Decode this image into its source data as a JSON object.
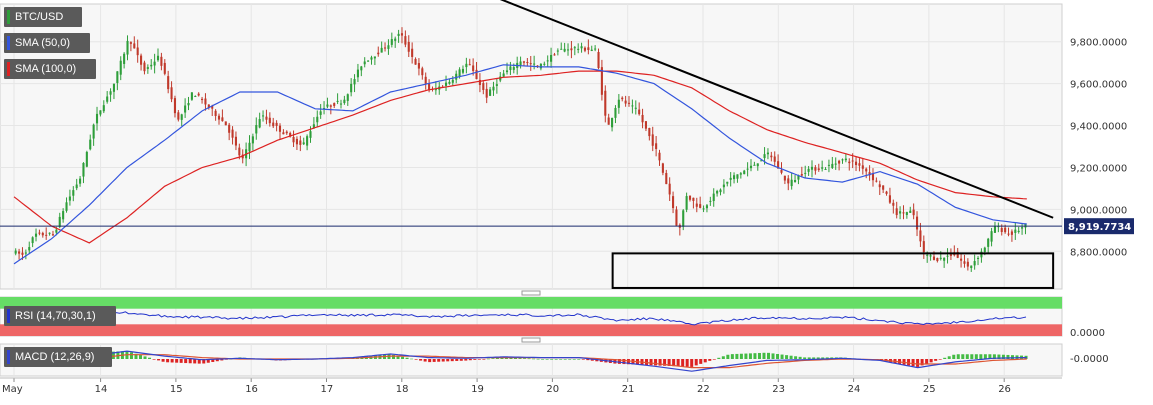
{
  "legend": {
    "symbol": "BTC/USD",
    "sma50": "SMA (50,0)",
    "sma100": "SMA (100,0)",
    "rsi": "RSI (14,70,30,1)",
    "macd": "MACD (12,26,9)"
  },
  "colors": {
    "bull": "#2e9e3a",
    "bear": "#c0392b",
    "sma50": "#3355dd",
    "sma100": "#dd2222",
    "trendline": "#000000",
    "rsi_line": "#2233cc",
    "rsi_overbought": "#66dd66",
    "rsi_oversold": "#ee6666",
    "macd_line": "#3344cc",
    "macd_signal": "#dd5533",
    "grid": "#e6e6e6",
    "panel_bg": "#f7f7f7",
    "current_line": "#1a2a6c"
  },
  "chart_data": {
    "type": "candlestick",
    "pair": "BTC/USD",
    "current_price": "8,919.7734",
    "current_price_value": 8919.77,
    "ylim": [
      8620,
      9980
    ],
    "y_ticks": [
      {
        "value": 9800,
        "label": "9,800.0000"
      },
      {
        "value": 9600,
        "label": "9,600.0000"
      },
      {
        "value": 9400,
        "label": "9,400.0000"
      },
      {
        "value": 9200,
        "label": "9,200.0000"
      },
      {
        "value": 9000,
        "label": "9,000.0000"
      },
      {
        "value": 8800,
        "label": "8,800.0000"
      }
    ],
    "x_ticks": [
      "May",
      "14",
      "15",
      "16",
      "17",
      "18",
      "19",
      "20",
      "21",
      "22",
      "23",
      "24",
      "25",
      "26"
    ],
    "x_tick_positions_days": [
      0,
      1.15,
      2.15,
      3.15,
      4.15,
      5.15,
      6.15,
      7.15,
      8.15,
      9.15,
      10.15,
      11.15,
      12.15,
      13.15
    ],
    "price_anchors": [
      [
        0,
        8800
      ],
      [
        0.15,
        8780
      ],
      [
        0.3,
        8880
      ],
      [
        0.55,
        8880
      ],
      [
        0.7,
        9020
      ],
      [
        0.9,
        9150
      ],
      [
        1.1,
        9430
      ],
      [
        1.35,
        9600
      ],
      [
        1.55,
        9820
      ],
      [
        1.75,
        9660
      ],
      [
        1.95,
        9730
      ],
      [
        2.2,
        9420
      ],
      [
        2.4,
        9560
      ],
      [
        2.6,
        9490
      ],
      [
        2.85,
        9400
      ],
      [
        3.05,
        9230
      ],
      [
        3.3,
        9450
      ],
      [
        3.55,
        9380
      ],
      [
        3.85,
        9300
      ],
      [
        4.1,
        9480
      ],
      [
        4.4,
        9520
      ],
      [
        4.65,
        9700
      ],
      [
        4.9,
        9760
      ],
      [
        5.15,
        9840
      ],
      [
        5.35,
        9700
      ],
      [
        5.55,
        9560
      ],
      [
        5.8,
        9610
      ],
      [
        6.05,
        9700
      ],
      [
        6.3,
        9540
      ],
      [
        6.5,
        9640
      ],
      [
        6.75,
        9710
      ],
      [
        7.0,
        9680
      ],
      [
        7.25,
        9760
      ],
      [
        7.5,
        9770
      ],
      [
        7.75,
        9760
      ],
      [
        7.9,
        9380
      ],
      [
        8.05,
        9530
      ],
      [
        8.3,
        9470
      ],
      [
        8.55,
        9280
      ],
      [
        8.75,
        9050
      ],
      [
        8.85,
        8880
      ],
      [
        8.95,
        9070
      ],
      [
        9.15,
        9000
      ],
      [
        9.35,
        9080
      ],
      [
        9.55,
        9150
      ],
      [
        9.8,
        9200
      ],
      [
        10.05,
        9270
      ],
      [
        10.3,
        9120
      ],
      [
        10.55,
        9190
      ],
      [
        10.8,
        9200
      ],
      [
        11.05,
        9240
      ],
      [
        11.3,
        9200
      ],
      [
        11.55,
        9100
      ],
      [
        11.75,
        8980
      ],
      [
        11.95,
        8990
      ],
      [
        12.1,
        8790
      ],
      [
        12.3,
        8760
      ],
      [
        12.5,
        8790
      ],
      [
        12.7,
        8720
      ],
      [
        12.9,
        8810
      ],
      [
        13.05,
        8920
      ],
      [
        13.25,
        8880
      ],
      [
        13.45,
        8920
      ]
    ],
    "sma50_anchors": [
      [
        0,
        8740
      ],
      [
        0.5,
        8860
      ],
      [
        1.0,
        9020
      ],
      [
        1.5,
        9200
      ],
      [
        2.0,
        9330
      ],
      [
        2.5,
        9470
      ],
      [
        3.0,
        9560
      ],
      [
        3.5,
        9560
      ],
      [
        4.0,
        9480
      ],
      [
        4.5,
        9470
      ],
      [
        5.0,
        9560
      ],
      [
        5.5,
        9600
      ],
      [
        6.0,
        9640
      ],
      [
        6.5,
        9690
      ],
      [
        7.0,
        9680
      ],
      [
        7.5,
        9680
      ],
      [
        8.0,
        9650
      ],
      [
        8.5,
        9600
      ],
      [
        9.0,
        9480
      ],
      [
        9.5,
        9340
      ],
      [
        10.0,
        9220
      ],
      [
        10.5,
        9150
      ],
      [
        11.0,
        9130
      ],
      [
        11.5,
        9180
      ],
      [
        12.0,
        9120
      ],
      [
        12.5,
        9010
      ],
      [
        13.0,
        8950
      ],
      [
        13.45,
        8930
      ]
    ],
    "sma100_anchors": [
      [
        0,
        9060
      ],
      [
        0.5,
        8920
      ],
      [
        1.0,
        8840
      ],
      [
        1.5,
        8960
      ],
      [
        2.0,
        9110
      ],
      [
        2.5,
        9200
      ],
      [
        3.0,
        9250
      ],
      [
        3.5,
        9330
      ],
      [
        4.0,
        9390
      ],
      [
        4.5,
        9450
      ],
      [
        5.0,
        9520
      ],
      [
        5.5,
        9570
      ],
      [
        6.0,
        9600
      ],
      [
        6.5,
        9630
      ],
      [
        7.0,
        9640
      ],
      [
        7.5,
        9660
      ],
      [
        8.0,
        9660
      ],
      [
        8.5,
        9640
      ],
      [
        9.0,
        9580
      ],
      [
        9.5,
        9470
      ],
      [
        10.0,
        9380
      ],
      [
        10.5,
        9320
      ],
      [
        11.0,
        9270
      ],
      [
        11.5,
        9220
      ],
      [
        12.0,
        9140
      ],
      [
        12.5,
        9080
      ],
      [
        13.0,
        9060
      ],
      [
        13.45,
        9050
      ]
    ],
    "trendline": {
      "start": [
        6.2,
        10040
      ],
      "end": [
        13.8,
        8960
      ]
    },
    "support_box": {
      "x0": 7.95,
      "x1": 13.8,
      "y0": 8625,
      "y1": 8790
    },
    "rsi": {
      "label": "RSI (14,70,30,1)",
      "overbought": 70,
      "oversold": 30,
      "ylim": [
        0,
        100
      ],
      "anchors": [
        [
          0,
          50
        ],
        [
          1.0,
          52
        ],
        [
          1.5,
          60
        ],
        [
          2.0,
          50
        ],
        [
          2.5,
          48
        ],
        [
          3.0,
          45
        ],
        [
          3.5,
          48
        ],
        [
          4.0,
          55
        ],
        [
          4.5,
          53
        ],
        [
          5.0,
          55
        ],
        [
          5.5,
          50
        ],
        [
          6.0,
          52
        ],
        [
          6.5,
          55
        ],
        [
          7.0,
          53
        ],
        [
          7.5,
          54
        ],
        [
          8.0,
          40
        ],
        [
          8.5,
          45
        ],
        [
          9.0,
          30
        ],
        [
          9.5,
          40
        ],
        [
          10.0,
          48
        ],
        [
          10.5,
          45
        ],
        [
          11.0,
          48
        ],
        [
          11.5,
          40
        ],
        [
          12.0,
          30
        ],
        [
          12.5,
          35
        ],
        [
          13.0,
          45
        ],
        [
          13.45,
          48
        ]
      ],
      "tick_label": "0.0000"
    },
    "macd": {
      "label": "MACD (12,26,9)",
      "ylim": [
        -1.0,
        1.0
      ],
      "anchors_macd": [
        [
          0,
          -0.35
        ],
        [
          0.5,
          -0.1
        ],
        [
          1.0,
          0.2
        ],
        [
          1.5,
          0.55
        ],
        [
          2.0,
          0.2
        ],
        [
          2.5,
          -0.05
        ],
        [
          3.0,
          0.05
        ],
        [
          3.5,
          -0.05
        ],
        [
          4.0,
          0.0
        ],
        [
          4.5,
          0.1
        ],
        [
          5.0,
          0.35
        ],
        [
          5.5,
          0.1
        ],
        [
          6.0,
          0.05
        ],
        [
          6.5,
          0.15
        ],
        [
          7.0,
          0.1
        ],
        [
          7.5,
          0.1
        ],
        [
          8.0,
          -0.2
        ],
        [
          8.5,
          -0.5
        ],
        [
          9.0,
          -0.85
        ],
        [
          9.5,
          -0.45
        ],
        [
          10.0,
          -0.1
        ],
        [
          10.5,
          -0.05
        ],
        [
          11.0,
          0.05
        ],
        [
          11.5,
          -0.1
        ],
        [
          12.0,
          -0.6
        ],
        [
          12.5,
          -0.2
        ],
        [
          13.0,
          0.05
        ],
        [
          13.45,
          0.1
        ]
      ],
      "anchors_signal": [
        [
          0,
          -0.3
        ],
        [
          0.5,
          -0.2
        ],
        [
          1.0,
          0.0
        ],
        [
          1.5,
          0.3
        ],
        [
          2.0,
          0.3
        ],
        [
          2.5,
          0.1
        ],
        [
          3.0,
          0.0
        ],
        [
          3.5,
          0.0
        ],
        [
          4.0,
          0.0
        ],
        [
          4.5,
          0.05
        ],
        [
          5.0,
          0.2
        ],
        [
          5.5,
          0.2
        ],
        [
          6.0,
          0.1
        ],
        [
          6.5,
          0.1
        ],
        [
          7.0,
          0.1
        ],
        [
          7.5,
          0.1
        ],
        [
          8.0,
          -0.05
        ],
        [
          8.5,
          -0.3
        ],
        [
          9.0,
          -0.6
        ],
        [
          9.5,
          -0.6
        ],
        [
          10.0,
          -0.3
        ],
        [
          10.5,
          -0.1
        ],
        [
          11.0,
          0.0
        ],
        [
          11.5,
          -0.05
        ],
        [
          12.0,
          -0.35
        ],
        [
          12.5,
          -0.35
        ],
        [
          13.0,
          -0.1
        ],
        [
          13.45,
          0.0
        ]
      ],
      "tick_label": "-0.0000"
    }
  }
}
